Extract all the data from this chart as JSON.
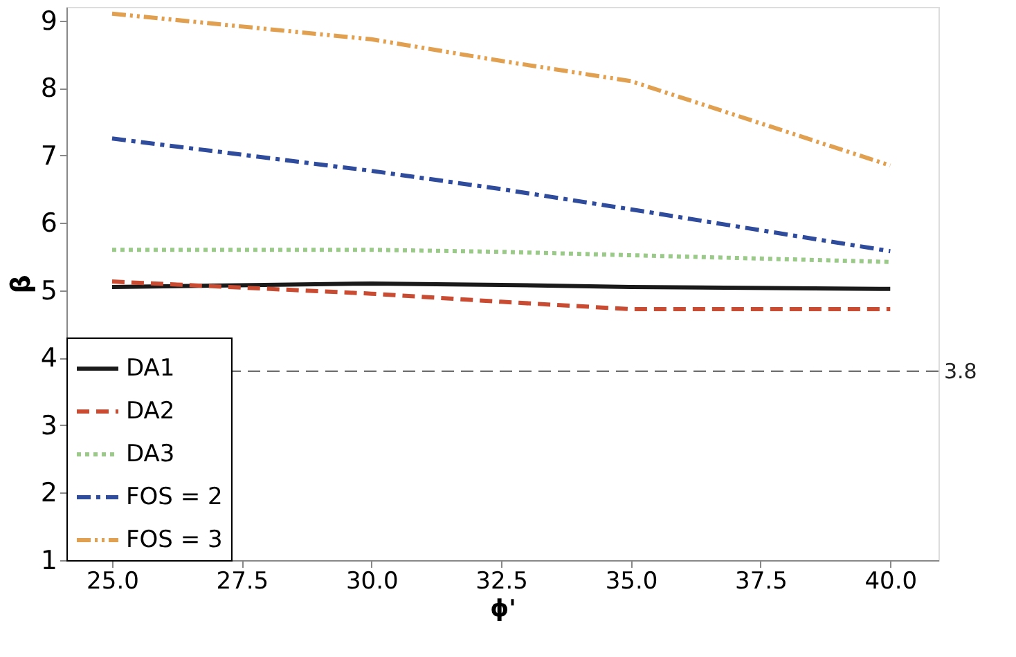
{
  "chart_data": {
    "type": "line",
    "xlabel": "ϕ'",
    "ylabel": "β",
    "x": [
      25,
      30,
      32.5,
      35,
      40
    ],
    "series": [
      {
        "name": "DA1",
        "color": "#1a1a1a",
        "line_style": "solid",
        "values": [
          5.05,
          5.1,
          5.08,
          5.05,
          5.02
        ]
      },
      {
        "name": "DA2",
        "color": "#c84b32",
        "line_style": "dashed",
        "values": [
          5.13,
          4.95,
          4.83,
          4.72,
          4.72
        ]
      },
      {
        "name": "DA3",
        "color": "#9bc98a",
        "line_style": "dotted",
        "values": [
          5.6,
          5.6,
          5.57,
          5.52,
          5.42
        ]
      },
      {
        "name": "FOS = 2",
        "color": "#2f4b9c",
        "line_style": "dashdot",
        "values": [
          7.25,
          6.77,
          6.5,
          6.2,
          5.58
        ]
      },
      {
        "name": "FOS = 3",
        "color": "#e0a050",
        "line_style": "dashdotdot",
        "values": [
          9.1,
          8.72,
          8.4,
          8.1,
          6.85
        ]
      }
    ],
    "xlim": [
      24.12,
      40.93
    ],
    "ylim": [
      1,
      9.2
    ],
    "xticks": [
      {
        "value": 25,
        "label": "25.0"
      },
      {
        "value": 27.5,
        "label": "27.5"
      },
      {
        "value": 30,
        "label": "30.0"
      },
      {
        "value": 32.5,
        "label": "32.5"
      },
      {
        "value": 35,
        "label": "35.0"
      },
      {
        "value": 37.5,
        "label": "37.5"
      },
      {
        "value": 40,
        "label": "40.0"
      }
    ],
    "yticks": [
      1,
      2,
      3,
      4,
      5,
      6,
      7,
      8,
      9
    ],
    "ref_lines": [
      {
        "axis": "y",
        "value": 3.8,
        "label": "3.8",
        "color": "#555555",
        "line_style": "dashed"
      }
    ],
    "grid": false,
    "legend": "bottom left"
  }
}
